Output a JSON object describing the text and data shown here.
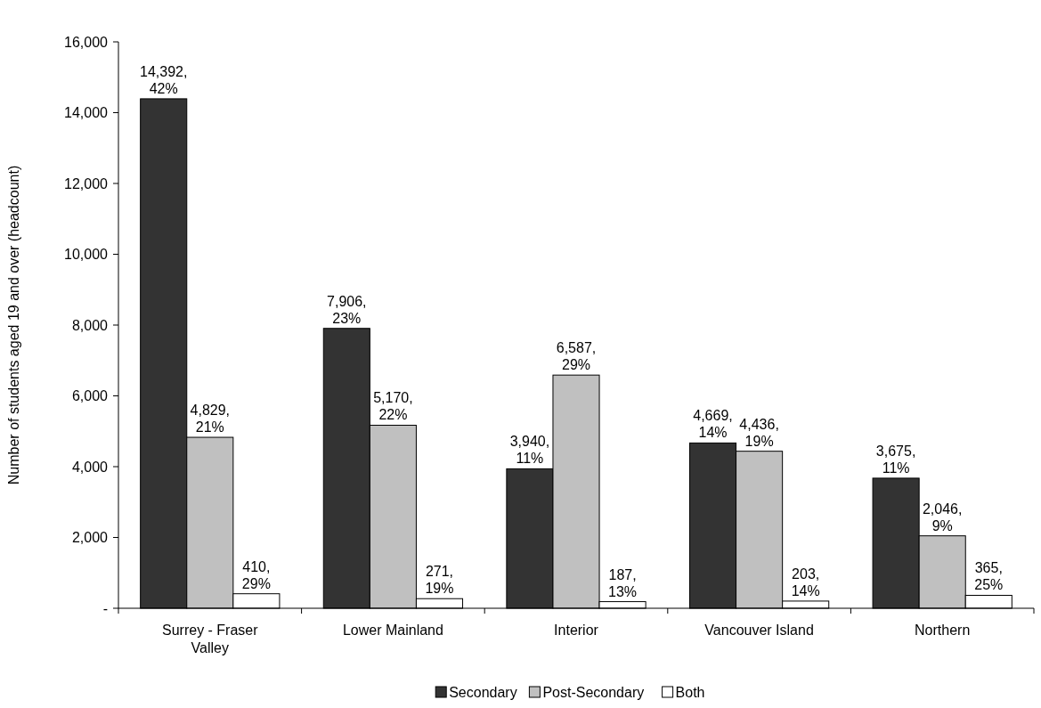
{
  "chart_data": {
    "type": "bar",
    "ylabel": "Number of students aged 19 and over (headcount)",
    "categories": [
      "Surrey - Fraser Valley",
      "Lower Mainland",
      "Interior",
      "Vancouver Island",
      "Northern"
    ],
    "series": [
      {
        "name": "Secondary",
        "color": "#333333",
        "values": [
          14392,
          7906,
          3940,
          4669,
          3675
        ],
        "value_labels": [
          "14,392, 42%",
          "7,906, 23%",
          "3,940, 11%",
          "4,669, 14%",
          "3,675, 11%"
        ]
      },
      {
        "name": "Post-Secondary",
        "color": "#c0c0c0",
        "values": [
          4829,
          5170,
          6587,
          4436,
          2046
        ],
        "value_labels": [
          "4,829, 21%",
          "5,170, 22%",
          "6,587, 29%",
          "4,436, 19%",
          "2,046, 9%"
        ]
      },
      {
        "name": "Both",
        "color": "#ffffff",
        "values": [
          410,
          271,
          187,
          203,
          365
        ],
        "value_labels": [
          "410, 29%",
          "271, 19%",
          "187, 13%",
          "203, 14%",
          "365, 25%"
        ]
      }
    ],
    "ylim": [
      0,
      16000
    ],
    "yticks": [
      {
        "value": 0,
        "label": "-"
      },
      {
        "value": 2000,
        "label": "2,000"
      },
      {
        "value": 4000,
        "label": "4,000"
      },
      {
        "value": 6000,
        "label": "6,000"
      },
      {
        "value": 8000,
        "label": "8,000"
      },
      {
        "value": 10000,
        "label": "10,000"
      },
      {
        "value": 12000,
        "label": "12,000"
      },
      {
        "value": 14000,
        "label": "14,000"
      },
      {
        "value": 16000,
        "label": "16,000"
      }
    ],
    "grid": false,
    "legend": "bottom"
  }
}
